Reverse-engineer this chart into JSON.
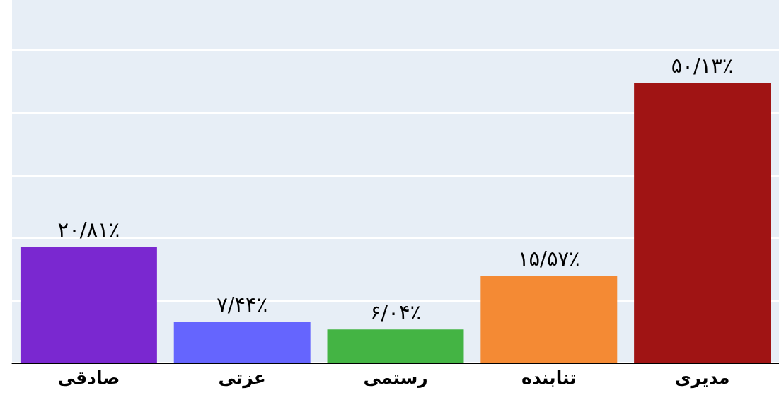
{
  "chart_data": {
    "type": "bar",
    "categories": [
      "صادقی",
      "عزتی",
      "رستمی",
      "تنابنده",
      "مدیری"
    ],
    "values": [
      20.81,
      7.44,
      6.04,
      15.57,
      50.13
    ],
    "value_labels": [
      "۲۰/۸۱٪",
      "۷/۴۴٪",
      "۶/۰۴٪",
      "۱۵/۵۷٪",
      "۵۰/۱۳٪"
    ],
    "colors": [
      "#7a28d0",
      "#6565fe",
      "#44b444",
      "#f48a34",
      "#a01414"
    ],
    "ylim": [
      0,
      65
    ],
    "yticks": [
      {
        "value": 0,
        "label": null
      },
      {
        "value": 11.2,
        "label": null
      },
      {
        "value": 22.4,
        "label": null
      },
      {
        "value": 33.6,
        "label": null
      },
      {
        "value": 44.8,
        "label": null
      },
      {
        "value": 56,
        "label": null
      }
    ],
    "grid": "y",
    "tick_labels": "x"
  }
}
